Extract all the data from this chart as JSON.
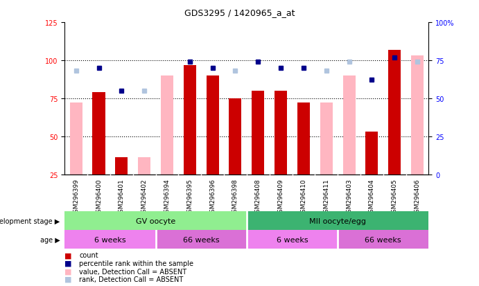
{
  "title": "GDS3295 / 1420965_a_at",
  "samples": [
    "GSM296399",
    "GSM296400",
    "GSM296401",
    "GSM296402",
    "GSM296394",
    "GSM296395",
    "GSM296396",
    "GSM296398",
    "GSM296408",
    "GSM296409",
    "GSM296410",
    "GSM296411",
    "GSM296403",
    "GSM296404",
    "GSM296405",
    "GSM296406"
  ],
  "count_values": [
    null,
    79,
    36,
    null,
    null,
    97,
    90,
    75,
    80,
    80,
    72,
    null,
    null,
    53,
    107,
    null
  ],
  "count_absent": [
    72,
    null,
    null,
    36,
    90,
    null,
    null,
    null,
    null,
    null,
    null,
    72,
    90,
    null,
    null,
    103
  ],
  "percentile_rank": [
    null,
    70,
    55,
    null,
    null,
    74,
    70,
    null,
    74,
    70,
    70,
    null,
    null,
    62,
    77,
    null
  ],
  "percentile_absent": [
    68,
    null,
    null,
    55,
    null,
    74,
    null,
    68,
    null,
    null,
    null,
    68,
    74,
    null,
    null,
    74
  ],
  "ylim_left": [
    25,
    125
  ],
  "ylim_right": [
    0,
    100
  ],
  "yticks_left": [
    25,
    50,
    75,
    100,
    125
  ],
  "yticks_right": [
    0,
    25,
    50,
    75,
    100
  ],
  "grid_values": [
    50,
    75,
    100
  ],
  "bar_width": 0.55,
  "count_color": "#cc0000",
  "count_absent_color": "#ffb6c1",
  "rank_color": "#00008b",
  "rank_absent_color": "#b0c4de",
  "xticklabel_bg": "#c8c8c8",
  "plot_bg": "#ffffff",
  "dev_stage_colors": [
    "#90ee90",
    "#3cb371"
  ],
  "age_colors": [
    "#ee82ee",
    "#da70d6",
    "#ee82ee",
    "#da70d6"
  ]
}
